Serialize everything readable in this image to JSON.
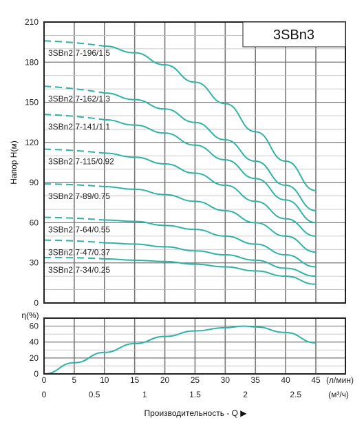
{
  "chart_data": [
    {
      "type": "line",
      "title": "3SBn3",
      "ylabel": "Напор H(м)",
      "xlim": [
        0,
        45
      ],
      "ylim": [
        0,
        210
      ],
      "yticks": [
        0,
        30,
        60,
        90,
        120,
        150,
        180,
        210
      ],
      "grid": true,
      "series": [
        {
          "name": "3SBn2.7-196/1.5",
          "dashed_x": [
            0,
            10
          ],
          "x": [
            10,
            15,
            20,
            25,
            30,
            35,
            40,
            45
          ],
          "y": [
            192,
            187,
            178,
            165,
            149,
            128,
            106,
            84
          ]
        },
        {
          "name": "3SBn2.7-162/1.3",
          "dashed_x": [
            0,
            10
          ],
          "x": [
            10,
            15,
            20,
            25,
            30,
            35,
            40,
            45
          ],
          "y": [
            157,
            152,
            145,
            135,
            122,
            106,
            88,
            69
          ]
        },
        {
          "name": "3SBn2.7-141/1.1",
          "dashed_x": [
            0,
            10
          ],
          "x": [
            10,
            15,
            20,
            25,
            30,
            35,
            40,
            45
          ],
          "y": [
            137,
            133,
            127,
            118,
            107,
            93,
            77,
            60
          ]
        },
        {
          "name": "3SBn2.7-115/0.92",
          "dashed_x": [
            0,
            10
          ],
          "x": [
            10,
            15,
            20,
            25,
            30,
            35,
            40,
            45
          ],
          "y": [
            112,
            109,
            104,
            97,
            88,
            76,
            63,
            50
          ]
        },
        {
          "name": "3SBn2.7-89/0.75",
          "dashed_x": [
            0,
            10
          ],
          "x": [
            10,
            15,
            20,
            25,
            30,
            35,
            40,
            45
          ],
          "y": [
            87,
            85,
            81,
            76,
            69,
            60,
            50,
            38
          ]
        },
        {
          "name": "3SBn2.7-64/0.55",
          "dashed_x": [
            0,
            10
          ],
          "x": [
            10,
            15,
            20,
            25,
            30,
            35,
            40,
            45
          ],
          "y": [
            62,
            61,
            58,
            55,
            50,
            44,
            36,
            27
          ]
        },
        {
          "name": "3SBn2.7-47/0.37",
          "dashed_x": [
            0,
            10
          ],
          "x": [
            10,
            15,
            20,
            25,
            30,
            35,
            40,
            45
          ],
          "y": [
            45,
            44,
            42,
            39,
            36,
            32,
            26,
            20
          ]
        },
        {
          "name": "3SBn2.7-34/0.25",
          "dashed_x": [
            0,
            10
          ],
          "x": [
            10,
            15,
            20,
            25,
            30,
            35,
            40,
            45
          ],
          "y": [
            33,
            32,
            31,
            29,
            27,
            24,
            20,
            14
          ]
        }
      ],
      "start_y": [
        196,
        162,
        141,
        115,
        89,
        64,
        47,
        34
      ]
    },
    {
      "type": "line",
      "ylabel": "η(%)",
      "xlim": [
        0,
        45
      ],
      "ylim": [
        0,
        70
      ],
      "yticks": [
        0,
        20,
        40,
        60
      ],
      "xticks": [
        0,
        5,
        10,
        15,
        20,
        25,
        30,
        35,
        40,
        45
      ],
      "xunit_top": "(л/мин)",
      "x2ticks": [
        0,
        0.5,
        1,
        1.5,
        2,
        2.5
      ],
      "x2unit": "(м³/ч)",
      "xlabel": "Производительность - Q ▶",
      "grid": true,
      "series": [
        {
          "x": [
            0,
            5,
            10,
            15,
            20,
            25,
            30,
            33,
            35,
            40,
            45
          ],
          "y": [
            0,
            14,
            27,
            38,
            47,
            54,
            58,
            60,
            59,
            52,
            39
          ]
        }
      ]
    }
  ],
  "colors": {
    "curve": "#2fb3a6",
    "grid": "#777777",
    "frame": "#222222"
  }
}
